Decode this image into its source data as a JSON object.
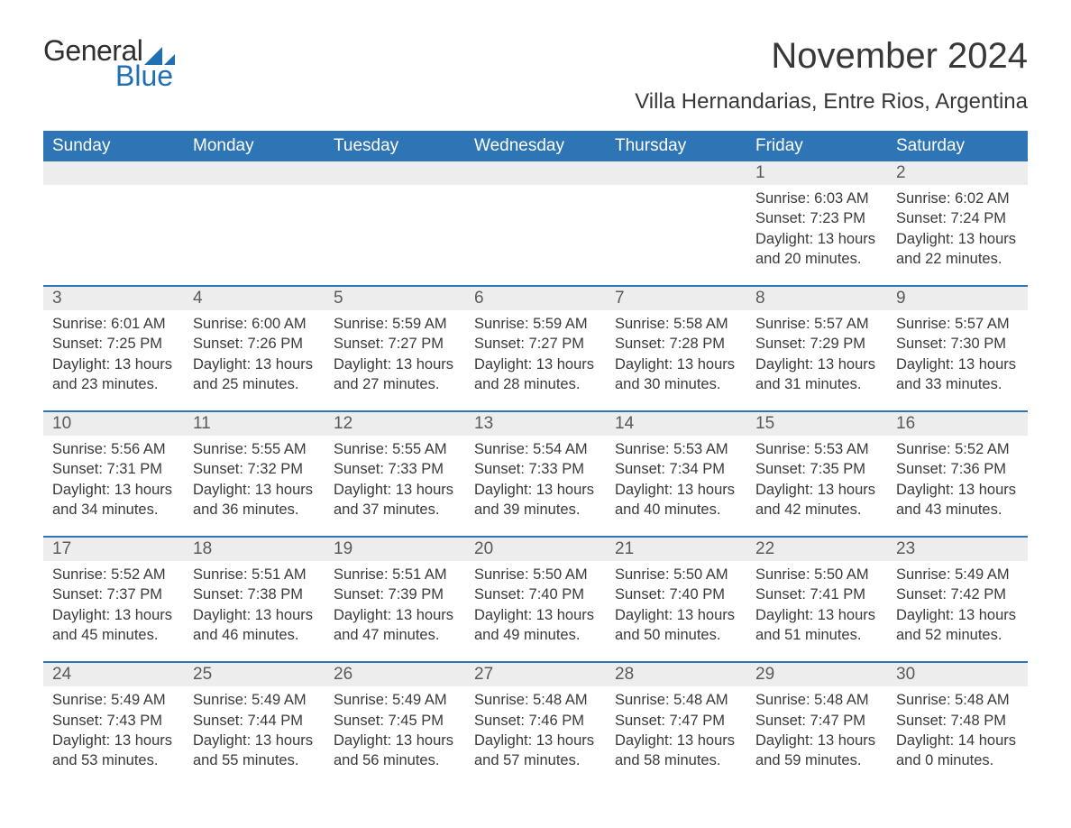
{
  "logo": {
    "word1": "General",
    "word2": "Blue",
    "word1_color": "#2f2f2f",
    "word2_color": "#1f6fb2",
    "triangle_color": "#1f6fb2"
  },
  "title": "November 2024",
  "location": "Villa Hernandarias, Entre Rios, Argentina",
  "colors": {
    "header_bg": "#2e75b6",
    "header_text": "#ffffff",
    "row_border": "#2e75b6",
    "daynum_bg": "#ededed",
    "daynum_text": "#5a5a5a",
    "body_text": "#3a3a3a",
    "page_bg": "#ffffff"
  },
  "fonts": {
    "month_title_size": 40,
    "location_size": 24,
    "weekday_size": 19,
    "daynum_size": 19,
    "body_size": 16.5
  },
  "weekdays": [
    "Sunday",
    "Monday",
    "Tuesday",
    "Wednesday",
    "Thursday",
    "Friday",
    "Saturday"
  ],
  "weeks": [
    [
      null,
      null,
      null,
      null,
      null,
      {
        "day": "1",
        "sunrise": "Sunrise: 6:03 AM",
        "sunset": "Sunset: 7:23 PM",
        "daylight": "Daylight: 13 hours and 20 minutes."
      },
      {
        "day": "2",
        "sunrise": "Sunrise: 6:02 AM",
        "sunset": "Sunset: 7:24 PM",
        "daylight": "Daylight: 13 hours and 22 minutes."
      }
    ],
    [
      {
        "day": "3",
        "sunrise": "Sunrise: 6:01 AM",
        "sunset": "Sunset: 7:25 PM",
        "daylight": "Daylight: 13 hours and 23 minutes."
      },
      {
        "day": "4",
        "sunrise": "Sunrise: 6:00 AM",
        "sunset": "Sunset: 7:26 PM",
        "daylight": "Daylight: 13 hours and 25 minutes."
      },
      {
        "day": "5",
        "sunrise": "Sunrise: 5:59 AM",
        "sunset": "Sunset: 7:27 PM",
        "daylight": "Daylight: 13 hours and 27 minutes."
      },
      {
        "day": "6",
        "sunrise": "Sunrise: 5:59 AM",
        "sunset": "Sunset: 7:27 PM",
        "daylight": "Daylight: 13 hours and 28 minutes."
      },
      {
        "day": "7",
        "sunrise": "Sunrise: 5:58 AM",
        "sunset": "Sunset: 7:28 PM",
        "daylight": "Daylight: 13 hours and 30 minutes."
      },
      {
        "day": "8",
        "sunrise": "Sunrise: 5:57 AM",
        "sunset": "Sunset: 7:29 PM",
        "daylight": "Daylight: 13 hours and 31 minutes."
      },
      {
        "day": "9",
        "sunrise": "Sunrise: 5:57 AM",
        "sunset": "Sunset: 7:30 PM",
        "daylight": "Daylight: 13 hours and 33 minutes."
      }
    ],
    [
      {
        "day": "10",
        "sunrise": "Sunrise: 5:56 AM",
        "sunset": "Sunset: 7:31 PM",
        "daylight": "Daylight: 13 hours and 34 minutes."
      },
      {
        "day": "11",
        "sunrise": "Sunrise: 5:55 AM",
        "sunset": "Sunset: 7:32 PM",
        "daylight": "Daylight: 13 hours and 36 minutes."
      },
      {
        "day": "12",
        "sunrise": "Sunrise: 5:55 AM",
        "sunset": "Sunset: 7:33 PM",
        "daylight": "Daylight: 13 hours and 37 minutes."
      },
      {
        "day": "13",
        "sunrise": "Sunrise: 5:54 AM",
        "sunset": "Sunset: 7:33 PM",
        "daylight": "Daylight: 13 hours and 39 minutes."
      },
      {
        "day": "14",
        "sunrise": "Sunrise: 5:53 AM",
        "sunset": "Sunset: 7:34 PM",
        "daylight": "Daylight: 13 hours and 40 minutes."
      },
      {
        "day": "15",
        "sunrise": "Sunrise: 5:53 AM",
        "sunset": "Sunset: 7:35 PM",
        "daylight": "Daylight: 13 hours and 42 minutes."
      },
      {
        "day": "16",
        "sunrise": "Sunrise: 5:52 AM",
        "sunset": "Sunset: 7:36 PM",
        "daylight": "Daylight: 13 hours and 43 minutes."
      }
    ],
    [
      {
        "day": "17",
        "sunrise": "Sunrise: 5:52 AM",
        "sunset": "Sunset: 7:37 PM",
        "daylight": "Daylight: 13 hours and 45 minutes."
      },
      {
        "day": "18",
        "sunrise": "Sunrise: 5:51 AM",
        "sunset": "Sunset: 7:38 PM",
        "daylight": "Daylight: 13 hours and 46 minutes."
      },
      {
        "day": "19",
        "sunrise": "Sunrise: 5:51 AM",
        "sunset": "Sunset: 7:39 PM",
        "daylight": "Daylight: 13 hours and 47 minutes."
      },
      {
        "day": "20",
        "sunrise": "Sunrise: 5:50 AM",
        "sunset": "Sunset: 7:40 PM",
        "daylight": "Daylight: 13 hours and 49 minutes."
      },
      {
        "day": "21",
        "sunrise": "Sunrise: 5:50 AM",
        "sunset": "Sunset: 7:40 PM",
        "daylight": "Daylight: 13 hours and 50 minutes."
      },
      {
        "day": "22",
        "sunrise": "Sunrise: 5:50 AM",
        "sunset": "Sunset: 7:41 PM",
        "daylight": "Daylight: 13 hours and 51 minutes."
      },
      {
        "day": "23",
        "sunrise": "Sunrise: 5:49 AM",
        "sunset": "Sunset: 7:42 PM",
        "daylight": "Daylight: 13 hours and 52 minutes."
      }
    ],
    [
      {
        "day": "24",
        "sunrise": "Sunrise: 5:49 AM",
        "sunset": "Sunset: 7:43 PM",
        "daylight": "Daylight: 13 hours and 53 minutes."
      },
      {
        "day": "25",
        "sunrise": "Sunrise: 5:49 AM",
        "sunset": "Sunset: 7:44 PM",
        "daylight": "Daylight: 13 hours and 55 minutes."
      },
      {
        "day": "26",
        "sunrise": "Sunrise: 5:49 AM",
        "sunset": "Sunset: 7:45 PM",
        "daylight": "Daylight: 13 hours and 56 minutes."
      },
      {
        "day": "27",
        "sunrise": "Sunrise: 5:48 AM",
        "sunset": "Sunset: 7:46 PM",
        "daylight": "Daylight: 13 hours and 57 minutes."
      },
      {
        "day": "28",
        "sunrise": "Sunrise: 5:48 AM",
        "sunset": "Sunset: 7:47 PM",
        "daylight": "Daylight: 13 hours and 58 minutes."
      },
      {
        "day": "29",
        "sunrise": "Sunrise: 5:48 AM",
        "sunset": "Sunset: 7:47 PM",
        "daylight": "Daylight: 13 hours and 59 minutes."
      },
      {
        "day": "30",
        "sunrise": "Sunrise: 5:48 AM",
        "sunset": "Sunset: 7:48 PM",
        "daylight": "Daylight: 14 hours and 0 minutes."
      }
    ]
  ]
}
